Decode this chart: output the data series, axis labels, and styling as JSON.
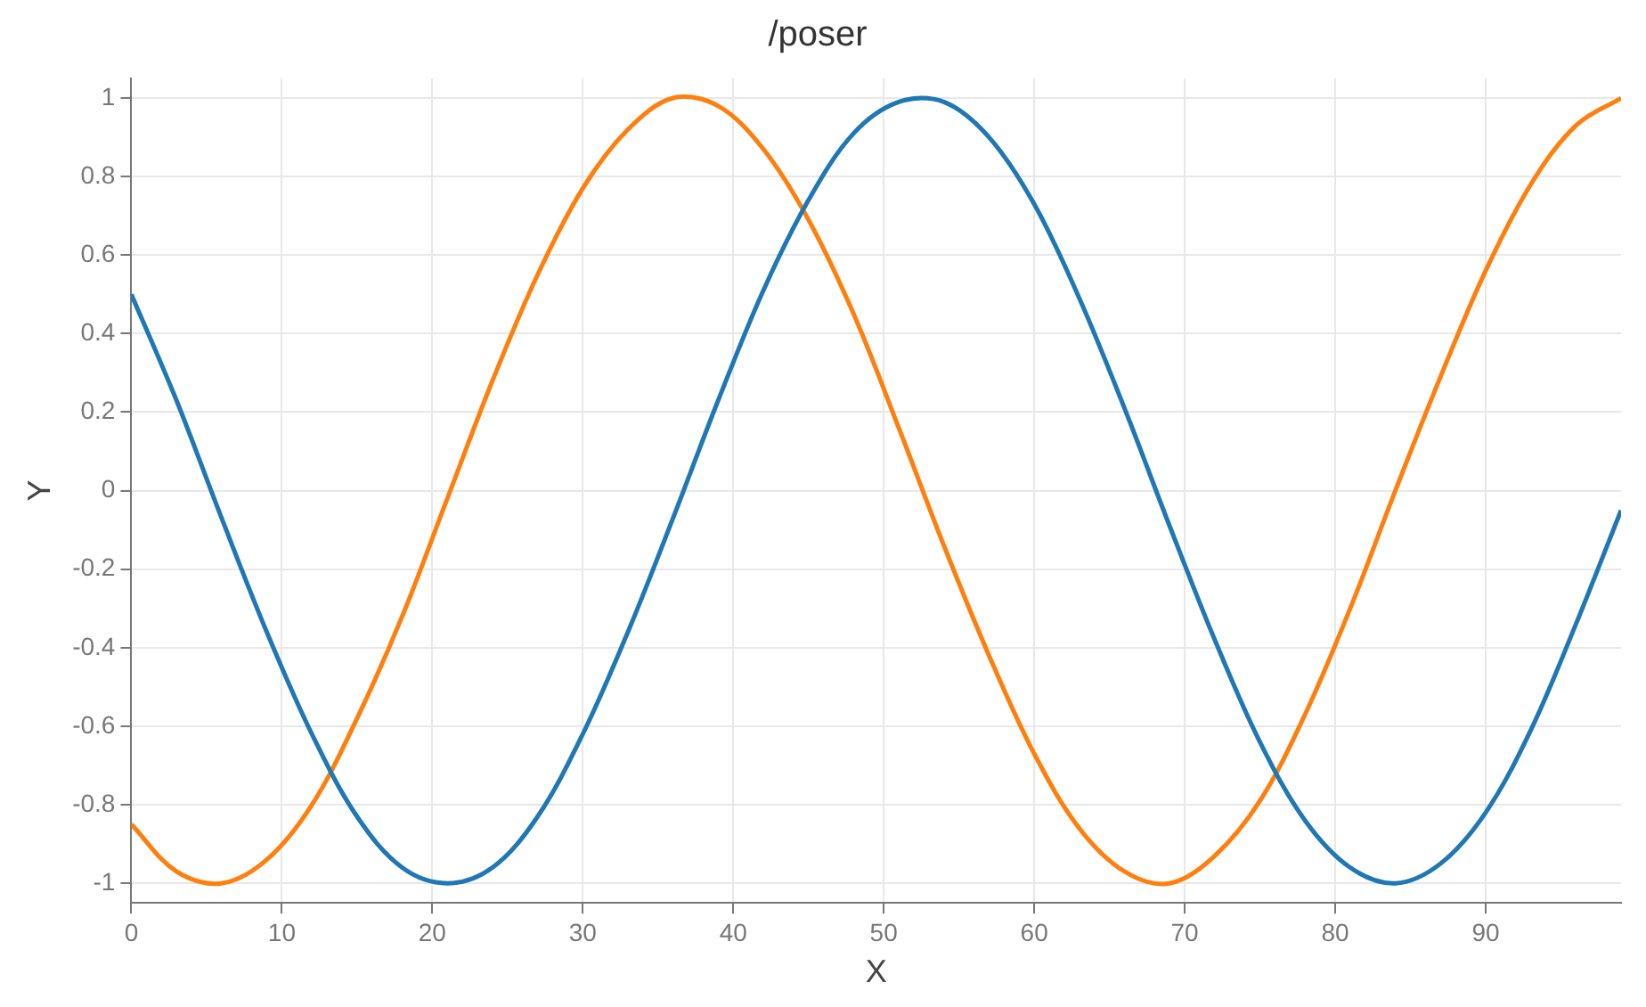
{
  "chart_data": {
    "type": "line",
    "title": "/poser",
    "xlabel": "X",
    "ylabel": "Y",
    "x": [
      0,
      3,
      6,
      9,
      12,
      15,
      18,
      21,
      24,
      27,
      30,
      33,
      36,
      39,
      42,
      45,
      48,
      51,
      54,
      57,
      60,
      63,
      66,
      69,
      72,
      75,
      78,
      81,
      84,
      87,
      90,
      93,
      96,
      99
    ],
    "series": [
      {
        "color": "#1f77b4",
        "values": [
          0.5,
          0.23,
          -0.07,
          -0.36,
          -0.62,
          -0.83,
          -0.96,
          -1,
          -0.96,
          -0.83,
          -0.62,
          -0.36,
          -0.07,
          0.23,
          0.51,
          0.74,
          0.91,
          0.99,
          0.99,
          0.9,
          0.73,
          0.49,
          0.21,
          -0.09,
          -0.38,
          -0.64,
          -0.84,
          -0.96,
          -1,
          -0.95,
          -0.82,
          -0.61,
          -0.34,
          -0.05
        ]
      },
      {
        "color": "#ff7f0e",
        "values": [
          -0.85,
          -0.97,
          -1,
          -0.94,
          -0.8,
          -0.58,
          -0.32,
          -0.02,
          0.28,
          0.55,
          0.77,
          0.92,
          1,
          0.98,
          0.87,
          0.69,
          0.45,
          0.16,
          -0.14,
          -0.42,
          -0.67,
          -0.86,
          -0.97,
          -1,
          -0.93,
          -0.79,
          -0.57,
          -0.3,
          0,
          0.29,
          0.56,
          0.78,
          0.93,
          1
        ]
      }
    ],
    "xlim": [
      0,
      99
    ],
    "xticks": [
      0,
      10,
      20,
      30,
      40,
      50,
      60,
      70,
      80,
      90
    ],
    "ylim": [
      -1.05,
      1.05
    ],
    "yticks": [
      -1,
      -0.8,
      -0.6,
      -0.4,
      -0.2,
      0,
      0.2,
      0.4,
      0.6,
      0.8,
      1
    ],
    "grid": true,
    "legend": false,
    "marker": "none",
    "line_style": "solid"
  }
}
